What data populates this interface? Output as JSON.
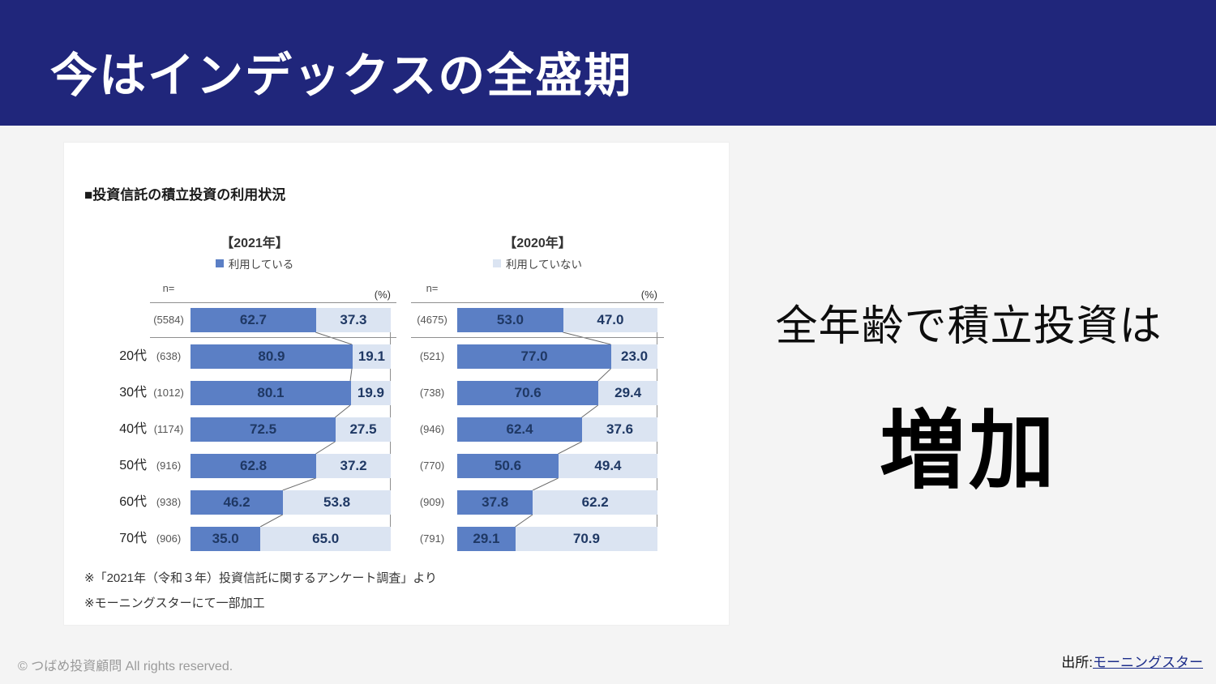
{
  "slide": {
    "title": "今はインデックスの全盛期",
    "takeaway": {
      "line1": "全年齢で積立投資は",
      "line2": "増加"
    },
    "footer": {
      "copyright": "© つばめ投資顧問 All rights reserved.",
      "source_prefix": "出所:",
      "source_link_text": "モーニングスター"
    },
    "colors": {
      "header_bg": "#20267b",
      "link": "#1c2d8a"
    }
  },
  "chart_section": {
    "heading": "■投資信託の積立投資の利用状況",
    "footnotes": [
      "※「2021年（令和３年）投資信託に関するアンケート調査」より",
      "※モーニングスターにて一部加工"
    ],
    "colors": {
      "used": "#5b7fc5",
      "not_used": "#dbe4f2"
    }
  },
  "chart_data": [
    {
      "type": "bar",
      "stacked": true,
      "orientation": "horizontal",
      "title": "【2021年】",
      "legend": {
        "label": "利用している",
        "series": "used",
        "position": "top"
      },
      "axis_n_label": "n=",
      "unit_label": "(%)",
      "xlim": [
        0,
        100
      ],
      "show_age_labels": true,
      "categories": [
        "",
        "20代",
        "30代",
        "40代",
        "50代",
        "60代",
        "70代"
      ],
      "n": [
        "(5584)",
        "(638)",
        "(1012)",
        "(1174)",
        "(916)",
        "(938)",
        "(906)"
      ],
      "series": [
        {
          "name": "利用している",
          "key": "used",
          "values": [
            62.7,
            80.9,
            80.1,
            72.5,
            62.8,
            46.2,
            35.0
          ]
        },
        {
          "name": "利用していない",
          "key": "not_used",
          "values": [
            37.3,
            19.1,
            19.9,
            27.5,
            37.2,
            53.8,
            65.0
          ]
        }
      ]
    },
    {
      "type": "bar",
      "stacked": true,
      "orientation": "horizontal",
      "title": "【2020年】",
      "legend": {
        "label": "利用していない",
        "series": "not_used",
        "position": "top"
      },
      "axis_n_label": "n=",
      "unit_label": "(%)",
      "xlim": [
        0,
        100
      ],
      "show_age_labels": false,
      "categories": [
        "",
        "20代",
        "30代",
        "40代",
        "50代",
        "60代",
        "70代"
      ],
      "n": [
        "(4675)",
        "(521)",
        "(738)",
        "(946)",
        "(770)",
        "(909)",
        "(791)"
      ],
      "series": [
        {
          "name": "利用している",
          "key": "used",
          "values": [
            53.0,
            77.0,
            70.6,
            62.4,
            50.6,
            37.8,
            29.1
          ]
        },
        {
          "name": "利用していない",
          "key": "not_used",
          "values": [
            47.0,
            23.0,
            29.4,
            37.6,
            49.4,
            62.2,
            70.9
          ]
        }
      ]
    }
  ]
}
